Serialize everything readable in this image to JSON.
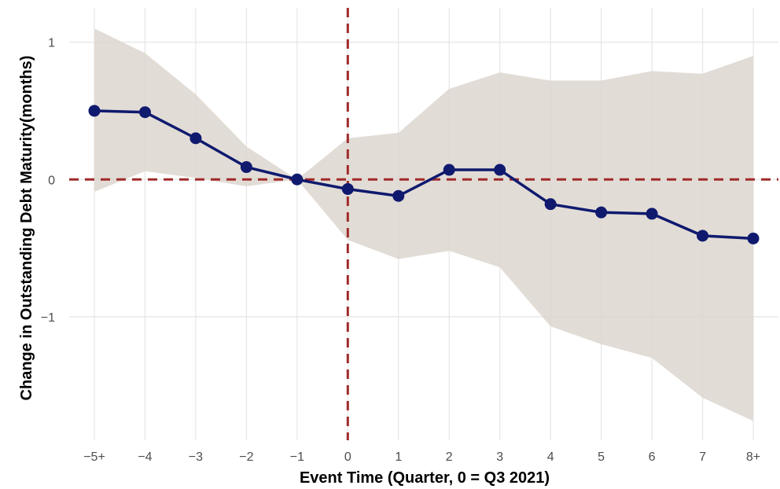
{
  "chart_data": {
    "type": "line",
    "xlabel": "Event Time (Quarter, 0 = Q3 2021)",
    "ylabel": "Change in Outstanding Debt Maturity(months)",
    "categories": [
      "−5+",
      "−4",
      "−3",
      "−2",
      "−1",
      "0",
      "1",
      "2",
      "3",
      "4",
      "5",
      "6",
      "7",
      "8+"
    ],
    "x": [
      -5,
      -4,
      -3,
      -2,
      -1,
      0,
      1,
      2,
      3,
      4,
      5,
      6,
      7,
      8
    ],
    "ylim": [
      -1.9,
      1.25
    ],
    "yticks": [
      1,
      0,
      -1
    ],
    "ytick_labels": [
      "1",
      "0",
      "−1"
    ],
    "grid": true,
    "series": [
      {
        "values": [
          0.5,
          0.49,
          0.3,
          0.09,
          0.0,
          -0.07,
          -0.12,
          0.07,
          0.07,
          -0.18,
          -0.24,
          -0.25,
          -0.41,
          -0.43
        ],
        "ci_upper": [
          1.1,
          0.92,
          0.62,
          0.24,
          0.0,
          0.3,
          0.34,
          0.66,
          0.78,
          0.72,
          0.72,
          0.79,
          0.77,
          0.9
        ],
        "ci_lower": [
          -0.09,
          0.06,
          0.01,
          -0.05,
          0.0,
          -0.44,
          -0.58,
          -0.52,
          -0.64,
          -1.07,
          -1.2,
          -1.3,
          -1.59,
          -1.76
        ]
      }
    ],
    "reference_lines": {
      "x": 0,
      "y": 0
    },
    "colors": {
      "line": "#0f1a6e",
      "band": "#ddd6cf",
      "reference": "#a02a2a",
      "grid": "#e5e5e5"
    }
  }
}
